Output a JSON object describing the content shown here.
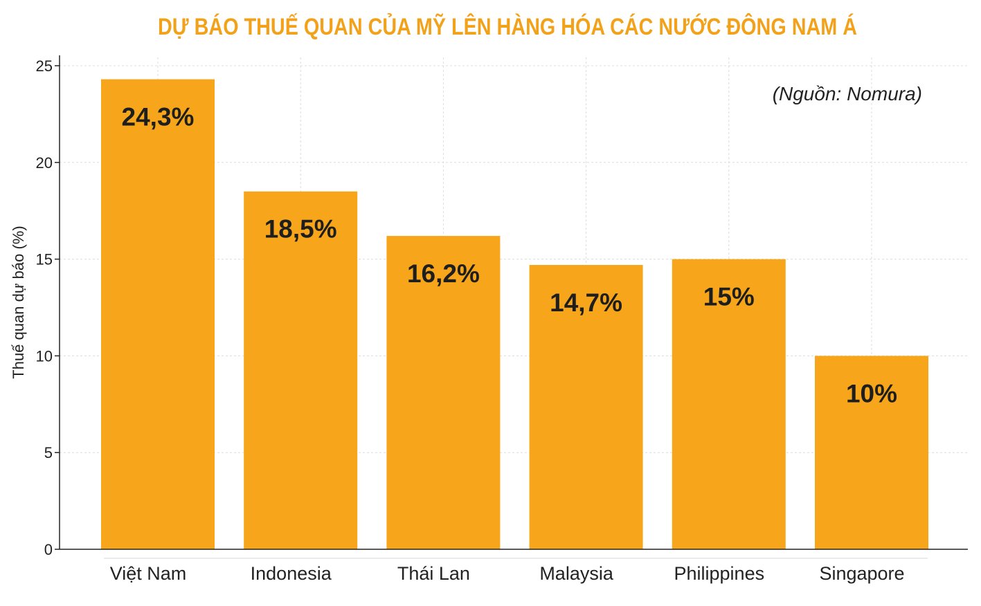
{
  "chart_data": {
    "type": "bar",
    "title": "DỰ BÁO THUẾ QUAN CỦA MỸ LÊN HÀNG HÓA CÁC NƯỚC ĐÔNG NAM Á",
    "source": "(Nguồn: Nomura)",
    "xlabel": "",
    "ylabel": "Thuế quan dự báo (%)",
    "categories": [
      "Việt Nam",
      "Indonesia",
      "Thái Lan",
      "Malaysia",
      "Philippines",
      "Singapore"
    ],
    "values": [
      24.3,
      18.5,
      16.2,
      14.7,
      15,
      10
    ],
    "data_labels": [
      "24,3%",
      "18,5%",
      "16,2%",
      "14,7%",
      "15%",
      "10%"
    ],
    "ylim": [
      0,
      25
    ],
    "yticks": [
      0,
      5,
      10,
      15,
      20,
      25
    ],
    "grid": true,
    "bar_color": "#f7a61c",
    "title_color": "#f2a21a"
  }
}
